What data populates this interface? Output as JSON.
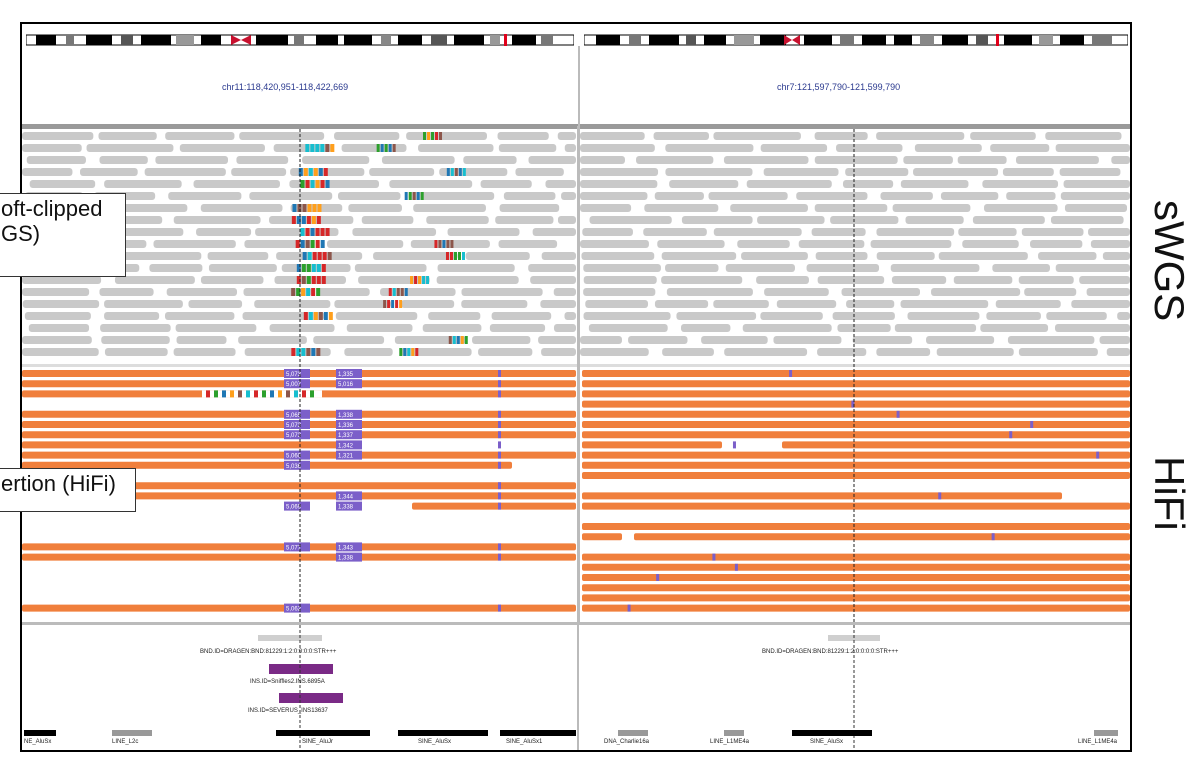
{
  "callouts": {
    "top_line1": "oft-clipped",
    "top_line2": "GS)",
    "bottom": "ertion (HiFi)"
  },
  "side_labels": {
    "swgs": "sWGS",
    "hifi": "HiFi"
  },
  "panels": {
    "left": {
      "locus": "chr11:118,420,951-118,422,669"
    },
    "right": {
      "locus": "chr7:121,597,790-121,599,790"
    }
  },
  "hifi_insertion_counts": {
    "left_col": [
      "5,073",
      "5,007",
      "5,065",
      "5,073",
      "5,073",
      "5,060",
      "5,036",
      "5,069",
      "5,077",
      "5,062"
    ],
    "right_col": [
      "1,335",
      "5,016",
      "1,338",
      "1,336",
      "1,337",
      "1,342",
      "1,321",
      "1,344",
      "1,338",
      "1,343",
      "1,338"
    ]
  },
  "variant_calls": {
    "left_bnd": "BND.ID=DRAGEN:BND:81229:1:2:0:0:0:0:STR+++",
    "left_sniffles": "INS.ID=Sniffles2.INS.6895A",
    "left_severus": "INS.ID=SEVERUS_INS13637",
    "right_bnd": "BND.ID=DRAGEN:BND:81229:1:2:0:0:0:0:STR+++"
  },
  "repeats": {
    "left": [
      "NE_AluSx",
      "LINE_L2c",
      "SINE_AluJr",
      "SINE_AluSx",
      "SINE_AluSx1"
    ],
    "right": [
      "DNA_Charlie16a",
      "LINE_L1ME4a",
      "SINE_AluSx",
      "LINE_L1ME4a"
    ]
  },
  "colors": {
    "swgs_read": "#c9c9c9",
    "hifi_read": "#f07f3c",
    "insertion_box": "#7b5fc9",
    "sv_bar": "#7a2a86",
    "locus_text": "#2b3a8f"
  }
}
